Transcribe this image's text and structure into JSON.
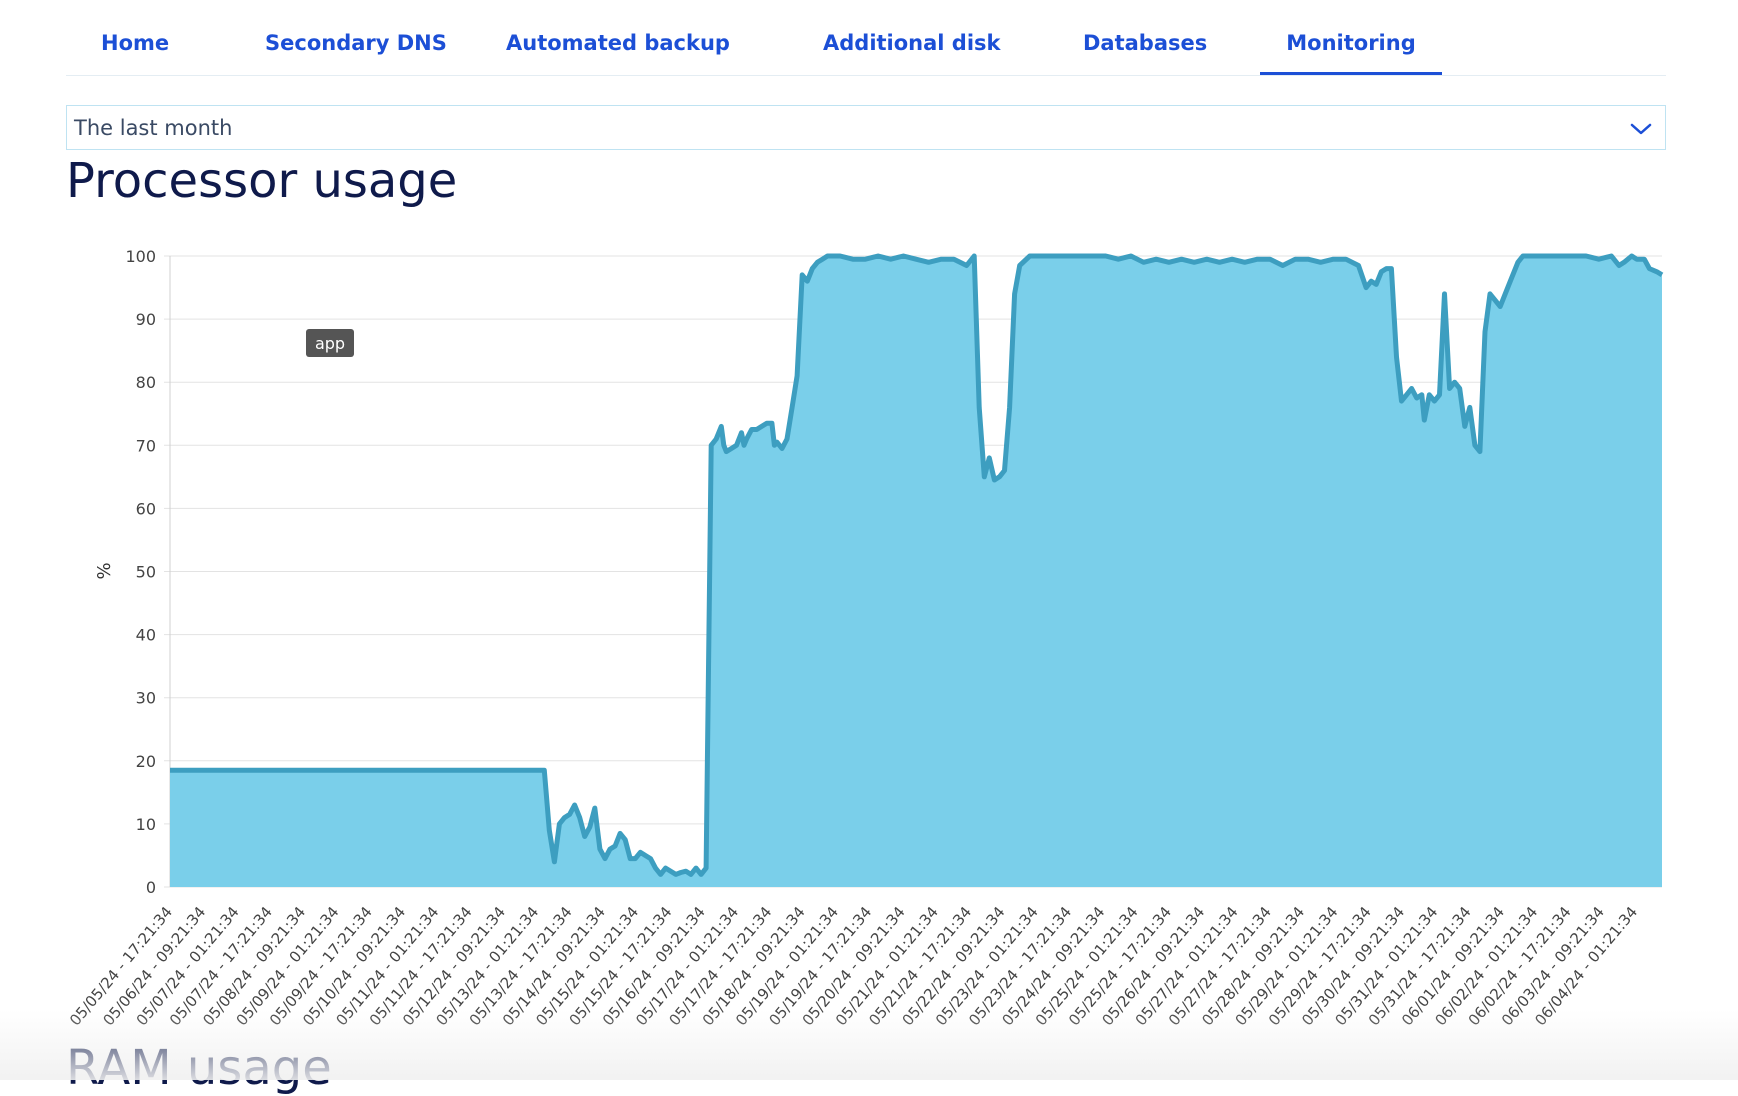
{
  "tabs": [
    {
      "label": "Home"
    },
    {
      "label": "Secondary DNS"
    },
    {
      "label": "Automated backup"
    },
    {
      "label": "Additional disk"
    },
    {
      "label": "Databases"
    },
    {
      "label": "Monitoring",
      "active": true
    }
  ],
  "period_select": {
    "value": "The last month",
    "icon": "chevron-down-icon"
  },
  "sections": {
    "processor_title": "Processor usage",
    "ram_title": "RAM usage"
  },
  "colors": {
    "accent": "#1c4fd6",
    "area_fill": "#7acfea",
    "area_line": "#3d9ec0",
    "title": "#0f1a4b"
  },
  "chart_data": {
    "type": "area",
    "title": "",
    "xlabel": "",
    "ylabel": "%",
    "ylim": [
      0,
      100
    ],
    "yticks": [
      0,
      10,
      20,
      30,
      40,
      50,
      60,
      70,
      80,
      90,
      100
    ],
    "grid": true,
    "tooltip": "app",
    "x_tick_labels": [
      "05/05/24 - 17:21:34",
      "05/06/24 - 09:21:34",
      "05/07/24 - 01:21:34",
      "05/07/24 - 17:21:34",
      "05/08/24 - 09:21:34",
      "05/09/24 - 01:21:34",
      "05/09/24 - 17:21:34",
      "05/10/24 - 09:21:34",
      "05/11/24 - 01:21:34",
      "05/11/24 - 17:21:34",
      "05/12/24 - 09:21:34",
      "05/13/24 - 01:21:34",
      "05/13/24 - 17:21:34",
      "05/14/24 - 09:21:34",
      "05/15/24 - 01:21:34",
      "05/15/24 - 17:21:34",
      "05/16/24 - 09:21:34",
      "05/17/24 - 01:21:34",
      "05/17/24 - 17:21:34",
      "05/18/24 - 09:21:34",
      "05/19/24 - 01:21:34",
      "05/19/24 - 17:21:34",
      "05/20/24 - 09:21:34",
      "05/21/24 - 01:21:34",
      "05/21/24 - 17:21:34",
      "05/22/24 - 09:21:34",
      "05/23/24 - 01:21:34",
      "05/23/24 - 17:21:34",
      "05/24/24 - 09:21:34",
      "05/25/24 - 01:21:34",
      "05/25/24 - 17:21:34",
      "05/26/24 - 09:21:34",
      "05/27/24 - 01:21:34",
      "05/27/24 - 17:21:34",
      "05/28/24 - 09:21:34",
      "05/29/24 - 01:21:34",
      "05/29/24 - 17:21:34",
      "05/30/24 - 09:21:34",
      "05/31/24 - 01:21:34",
      "05/31/24 - 17:21:34",
      "06/01/24 - 09:21:34",
      "06/02/24 - 01:21:34",
      "06/02/24 - 17:21:34",
      "06/03/24 - 09:21:34",
      "06/04/24 - 01:21:34"
    ],
    "series": [
      {
        "x_start": "05/05/24 - 17:21:34",
        "x_end": "06/04/24 - 19:21:34",
        "values": [
          [
            0,
            18.5
          ],
          [
            14.8,
            18.5
          ],
          [
            15.0,
            9
          ],
          [
            15.2,
            4
          ],
          [
            15.4,
            10
          ],
          [
            15.6,
            11
          ],
          [
            15.8,
            11.5
          ],
          [
            16.0,
            13
          ],
          [
            16.2,
            11
          ],
          [
            16.4,
            8
          ],
          [
            16.6,
            9.5
          ],
          [
            16.8,
            12.5
          ],
          [
            17.0,
            6
          ],
          [
            17.2,
            4.5
          ],
          [
            17.4,
            6
          ],
          [
            17.6,
            6.5
          ],
          [
            17.8,
            8.5
          ],
          [
            18.0,
            7.5
          ],
          [
            18.2,
            4.5
          ],
          [
            18.4,
            4.5
          ],
          [
            18.6,
            5.5
          ],
          [
            18.8,
            5
          ],
          [
            19.0,
            4.5
          ],
          [
            19.2,
            3
          ],
          [
            19.4,
            2
          ],
          [
            19.6,
            3
          ],
          [
            19.8,
            2.5
          ],
          [
            20.0,
            2
          ],
          [
            20.2,
            2.3
          ],
          [
            20.4,
            2.5
          ],
          [
            20.6,
            2
          ],
          [
            20.8,
            3
          ],
          [
            20.9,
            2.5
          ],
          [
            21.0,
            2
          ],
          [
            21.2,
            3
          ],
          [
            21.4,
            70
          ],
          [
            21.6,
            71
          ],
          [
            21.8,
            73
          ],
          [
            21.9,
            70
          ],
          [
            22.0,
            69
          ],
          [
            22.2,
            69.5
          ],
          [
            22.4,
            70
          ],
          [
            22.6,
            72
          ],
          [
            22.7,
            70
          ],
          [
            22.8,
            71
          ],
          [
            23.0,
            72.5
          ],
          [
            23.2,
            72.5
          ],
          [
            23.4,
            73
          ],
          [
            23.6,
            73.5
          ],
          [
            23.8,
            73.5
          ],
          [
            23.9,
            70
          ],
          [
            24.0,
            70.5
          ],
          [
            24.2,
            69.5
          ],
          [
            24.4,
            71
          ],
          [
            24.6,
            76
          ],
          [
            24.8,
            81
          ],
          [
            25.0,
            97
          ],
          [
            25.2,
            96
          ],
          [
            25.4,
            98
          ],
          [
            25.6,
            99
          ],
          [
            25.8,
            99.5
          ],
          [
            26.0,
            100
          ],
          [
            26.5,
            100
          ],
          [
            27.0,
            99.5
          ],
          [
            27.5,
            99.5
          ],
          [
            28.0,
            100
          ],
          [
            28.5,
            99.5
          ],
          [
            29.0,
            100
          ],
          [
            29.5,
            99.5
          ],
          [
            30.0,
            99
          ],
          [
            30.5,
            99.5
          ],
          [
            31.0,
            99.5
          ],
          [
            31.5,
            98.5
          ],
          [
            31.8,
            100
          ],
          [
            32.0,
            76
          ],
          [
            32.2,
            65
          ],
          [
            32.4,
            68
          ],
          [
            32.6,
            64.5
          ],
          [
            32.8,
            65
          ],
          [
            33.0,
            66
          ],
          [
            33.2,
            76
          ],
          [
            33.4,
            94
          ],
          [
            33.6,
            98.5
          ],
          [
            34.0,
            100
          ],
          [
            35.0,
            100
          ],
          [
            36.0,
            100
          ],
          [
            37.0,
            100
          ],
          [
            37.5,
            99.5
          ],
          [
            38.0,
            100
          ],
          [
            38.5,
            99
          ],
          [
            39.0,
            99.5
          ],
          [
            39.5,
            99
          ],
          [
            40.0,
            99.5
          ],
          [
            40.5,
            99
          ],
          [
            41.0,
            99.5
          ],
          [
            41.5,
            99
          ],
          [
            42.0,
            99.5
          ],
          [
            42.5,
            99
          ],
          [
            43.0,
            99.5
          ],
          [
            43.5,
            99.5
          ],
          [
            44.0,
            98.5
          ],
          [
            44.5,
            99.5
          ],
          [
            45.0,
            99.5
          ],
          [
            45.5,
            99
          ],
          [
            46.0,
            99.5
          ],
          [
            46.5,
            99.5
          ],
          [
            47.0,
            98.5
          ],
          [
            47.3,
            95
          ],
          [
            47.5,
            96
          ],
          [
            47.7,
            95.5
          ],
          [
            47.9,
            97.5
          ],
          [
            48.1,
            98
          ],
          [
            48.3,
            98
          ],
          [
            48.5,
            84
          ],
          [
            48.7,
            77
          ],
          [
            48.9,
            78
          ],
          [
            49.1,
            79
          ],
          [
            49.3,
            77.5
          ],
          [
            49.5,
            78
          ],
          [
            49.6,
            74
          ],
          [
            49.8,
            78
          ],
          [
            50.0,
            77
          ],
          [
            50.2,
            78
          ],
          [
            50.4,
            94
          ],
          [
            50.6,
            79
          ],
          [
            50.8,
            80
          ],
          [
            51.0,
            79
          ],
          [
            51.2,
            73
          ],
          [
            51.4,
            76
          ],
          [
            51.6,
            70
          ],
          [
            51.8,
            69
          ],
          [
            52.0,
            88
          ],
          [
            52.2,
            94
          ],
          [
            52.4,
            93
          ],
          [
            52.6,
            92
          ],
          [
            52.8,
            94
          ],
          [
            53.0,
            96
          ],
          [
            53.3,
            99
          ],
          [
            53.5,
            100
          ],
          [
            55.0,
            100
          ],
          [
            56.0,
            100
          ],
          [
            56.5,
            99.5
          ],
          [
            57.0,
            100
          ],
          [
            57.3,
            98.5
          ],
          [
            57.5,
            99
          ],
          [
            57.8,
            100
          ],
          [
            58.0,
            99.5
          ],
          [
            58.3,
            99.5
          ],
          [
            58.5,
            98
          ],
          [
            58.8,
            97.5
          ],
          [
            59.0,
            97
          ]
        ]
      }
    ]
  }
}
